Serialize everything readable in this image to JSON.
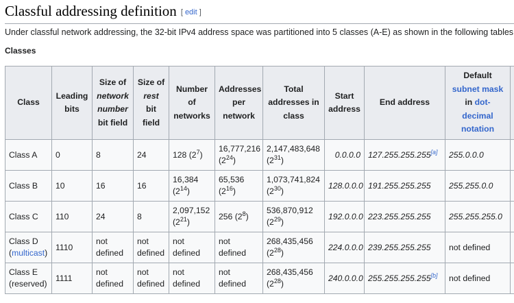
{
  "section": {
    "title": "Classful addressing definition",
    "edit_open": "[ ",
    "edit_label": "edit",
    "edit_close": " ]"
  },
  "intro": "Under classful network addressing, the 32-bit IPv4 address space was partitioned into 5 classes (A-E) as shown in the following tables.",
  "subheading": "Classes",
  "headers": {
    "class": "Class",
    "leading_bits_1": "Leading",
    "leading_bits_2": "bits",
    "size_net_1": "Size of",
    "size_net_2": "network",
    "size_net_3": "number",
    "size_net_4": "bit field",
    "size_rest_1": "Size of",
    "size_rest_2": "rest",
    "size_rest_3": "bit",
    "size_rest_4": "field",
    "num_net_1": "Number",
    "num_net_2": "of",
    "num_net_3": "networks",
    "addr_per_1": "Addresses",
    "addr_per_2": "per",
    "addr_per_3": "network",
    "total_1": "Total",
    "total_2": "addresses in",
    "total_3": "class",
    "start_1": "Start",
    "start_2": "address",
    "end": "End address",
    "mask_1": "Default",
    "mask_2": "subnet mask",
    "mask_3": "in",
    "mask_4": "dot-",
    "mask_5": "decimal",
    "mask_6": "notation"
  },
  "rows": [
    {
      "class": "Class A",
      "class_sub": "",
      "leading": "0",
      "net_bits": "8",
      "rest_bits": "24",
      "networks": "128 (2",
      "networks_exp": "7",
      "networks_close": ")",
      "per_network": "16,777,216 (2",
      "per_network_exp": "24",
      "per_network_close": ")",
      "total": "2,147,483,648 (2",
      "total_exp": "31",
      "total_close": ")",
      "start": "0.0.0.0",
      "end": "127.255.255.255",
      "end_note": "[a]",
      "mask": "255.0.0.0"
    },
    {
      "class": "Class B",
      "class_sub": "",
      "leading": "10",
      "net_bits": "16",
      "rest_bits": "16",
      "networks": "16,384 (2",
      "networks_exp": "14",
      "networks_close": ")",
      "per_network": "65,536 (2",
      "per_network_exp": "16",
      "per_network_close": ")",
      "total": "1,073,741,824 (2",
      "total_exp": "30",
      "total_close": ")",
      "start": "128.0.0.0",
      "end": "191.255.255.255",
      "end_note": "",
      "mask": "255.255.0.0"
    },
    {
      "class": "Class C",
      "class_sub": "",
      "leading": "110",
      "net_bits": "24",
      "rest_bits": "8",
      "networks": "2,097,152 (2",
      "networks_exp": "21",
      "networks_close": ")",
      "per_network": "256 (2",
      "per_network_exp": "8",
      "per_network_close": ")",
      "total": "536,870,912 (2",
      "total_exp": "29",
      "total_close": ")",
      "start": "192.0.0.0",
      "end": "223.255.255.255",
      "end_note": "",
      "mask": "255.255.255.0"
    },
    {
      "class": "Class D",
      "class_sub": "multicast",
      "leading": "1110",
      "net_bits": "not defined",
      "rest_bits": "not defined",
      "networks": "not defined",
      "networks_exp": "",
      "networks_close": "",
      "per_network": "not defined",
      "per_network_exp": "",
      "per_network_close": "",
      "total": "268,435,456 (2",
      "total_exp": "28",
      "total_close": ")",
      "start": "224.0.0.0",
      "end": "239.255.255.255",
      "end_note": "",
      "mask": "not defined"
    },
    {
      "class": "Class E",
      "class_sub": "reserved",
      "leading": "1111",
      "net_bits": "not defined",
      "rest_bits": "not defined",
      "networks": "not defined",
      "networks_exp": "",
      "networks_close": "",
      "per_network": "not defined",
      "per_network_exp": "",
      "per_network_close": "",
      "total": "268,435,456 (2",
      "total_exp": "28",
      "total_close": ")",
      "start": "240.0.0.0",
      "end": "255.255.255.255",
      "end_note": "[b]",
      "mask": "not defined"
    }
  ]
}
